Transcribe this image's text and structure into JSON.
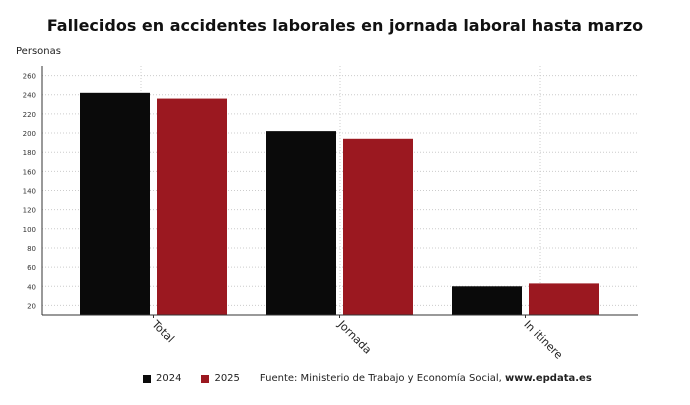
{
  "chart_data": {
    "type": "bar",
    "title": "Fallecidos en accidentes laborales en jornada laboral hasta marzo",
    "ylabel": "Personas",
    "xlabel": "",
    "categories": [
      "Total",
      "Jornada",
      "In itinere"
    ],
    "series": [
      {
        "name": "2024",
        "color": "#0a0a0a",
        "values": [
          242,
          202,
          40
        ]
      },
      {
        "name": "2025",
        "color": "#9b1820",
        "values": [
          236,
          194,
          43
        ]
      }
    ],
    "ylim": [
      10,
      270
    ],
    "yticks": [
      20,
      40,
      60,
      80,
      100,
      120,
      140,
      160,
      180,
      200,
      220,
      240,
      260
    ],
    "grid": true,
    "legend": "bottom"
  },
  "source": {
    "text": "Fuente: Ministerio de Trabajo y Economía Social, ",
    "site": "www.epdata.es"
  }
}
